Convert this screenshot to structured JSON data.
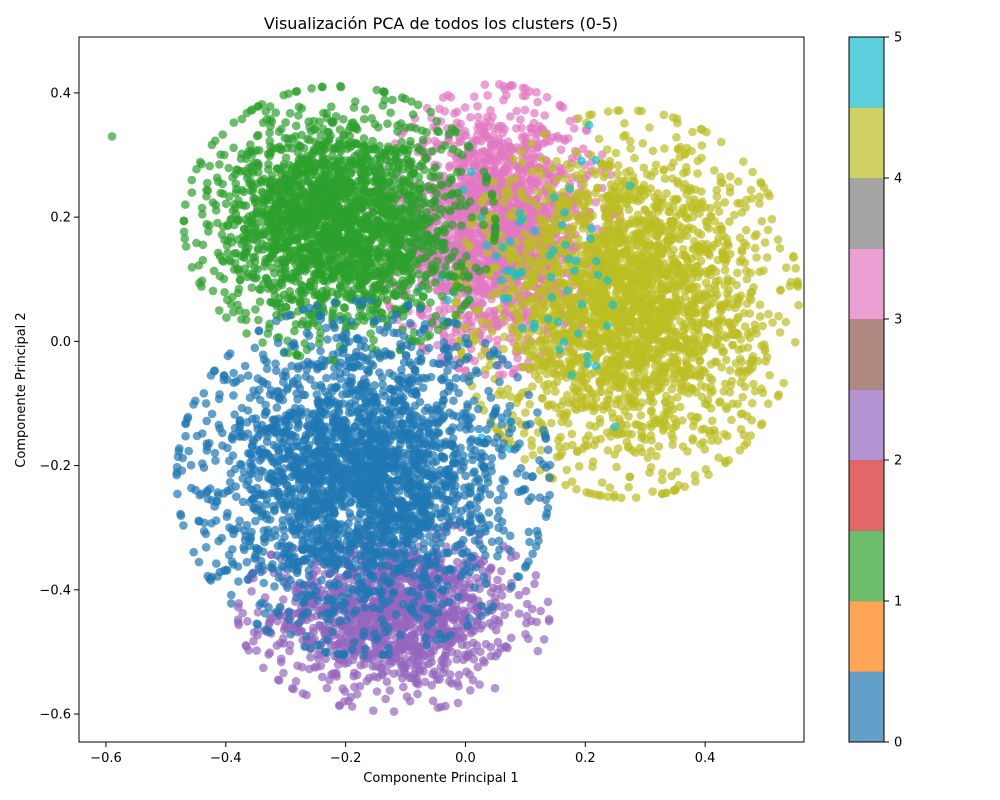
{
  "chart_data": {
    "type": "scatter",
    "title": "Visualización PCA de todos los clusters (0-5)",
    "xlabel": "Componente Principal 1",
    "ylabel": "Componente Principal 2",
    "xlim": [
      -0.645,
      0.565
    ],
    "ylim": [
      -0.645,
      0.49
    ],
    "xticks": [
      -0.6,
      -0.4,
      -0.2,
      0.0,
      0.2,
      0.4
    ],
    "xtick_labels": [
      "−0.6",
      "−0.4",
      "−0.2",
      "0.0",
      "0.2",
      "0.4"
    ],
    "yticks": [
      -0.6,
      -0.4,
      -0.2,
      0.0,
      0.2,
      0.4
    ],
    "ytick_labels": [
      "−0.6",
      "−0.4",
      "−0.2",
      "0.0",
      "0.2",
      "0.4"
    ],
    "grid": false,
    "colormap": "tab10 (discrete, 6 levels)",
    "series": [
      {
        "cluster": 0,
        "color": "#1f77b4",
        "center": [
          -0.17,
          -0.22
        ],
        "spread": [
          0.12,
          0.11
        ],
        "count": 2600
      },
      {
        "cluster": 1,
        "color": "#2ca02c",
        "center": [
          -0.21,
          0.19
        ],
        "spread": [
          0.1,
          0.085
        ],
        "count": 2200,
        "extra_points": [
          [
            -0.59,
            0.33
          ]
        ]
      },
      {
        "cluster": 2,
        "color": "#9467bd",
        "center": [
          -0.12,
          -0.44
        ],
        "spread": [
          0.1,
          0.06
        ],
        "count": 1300
      },
      {
        "cluster": 3,
        "color": "#e377c2",
        "center": [
          0.05,
          0.18
        ],
        "spread": [
          0.08,
          0.09
        ],
        "count": 1900
      },
      {
        "cluster": 4,
        "color": "#bcbd22",
        "center": [
          0.27,
          0.06
        ],
        "spread": [
          0.11,
          0.12
        ],
        "count": 2600
      },
      {
        "cluster": 5,
        "color": "#17becf",
        "center": [
          0.1,
          0.08
        ],
        "spread": [
          0.08,
          0.12
        ],
        "count": 70
      }
    ],
    "colorbar": {
      "ticks": [
        0,
        1,
        2,
        3,
        4,
        5
      ],
      "tick_labels": [
        "0",
        "1",
        "2",
        "3",
        "4",
        "5"
      ],
      "range": [
        0,
        5
      ],
      "colors": [
        "#1f77b4",
        "#ff7f0e",
        "#2ca02c",
        "#d62728",
        "#9467bd",
        "#8c564b",
        "#e377c2",
        "#7f7f7f",
        "#bcbd22",
        "#17becf"
      ],
      "alpha": 0.7
    }
  }
}
